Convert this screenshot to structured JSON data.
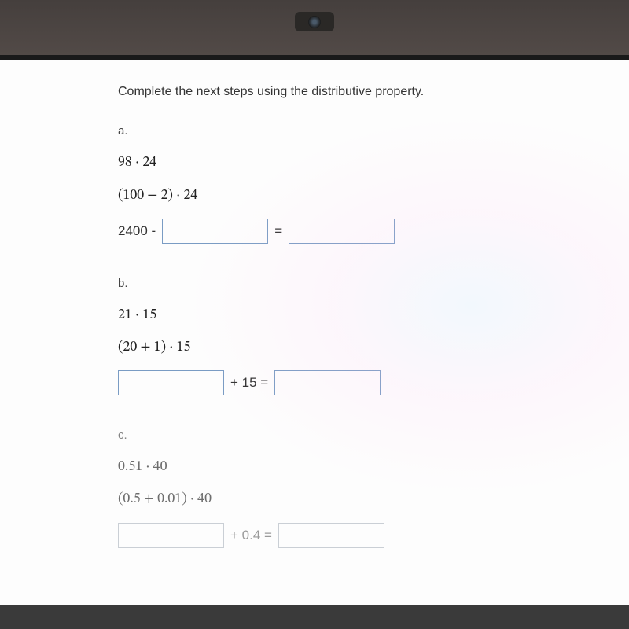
{
  "instruction": "Complete the next steps using the distributive property.",
  "problems": {
    "a": {
      "label": "a.",
      "line1": "98 · 24",
      "line2": "(100 − 2) · 24",
      "eq_prefix": "2400 -",
      "eq_mid": "="
    },
    "b": {
      "label": "b.",
      "line1": "21 · 15",
      "line2": "(20 + 1) · 15",
      "eq_mid": "+ 15 ="
    },
    "c": {
      "label": "c.",
      "line1": "0.51 · 40",
      "line2": "(0.5 + 0.01) · 40",
      "eq_mid": "+ 0.4 ="
    }
  },
  "colors": {
    "input_border": "#7a9cc4",
    "text": "#333333",
    "background": "#fdfdfd",
    "frame": "#453f3d"
  },
  "typography": {
    "instruction_fontsize": 16,
    "math_fontsize": 18,
    "label_fontsize": 15
  }
}
